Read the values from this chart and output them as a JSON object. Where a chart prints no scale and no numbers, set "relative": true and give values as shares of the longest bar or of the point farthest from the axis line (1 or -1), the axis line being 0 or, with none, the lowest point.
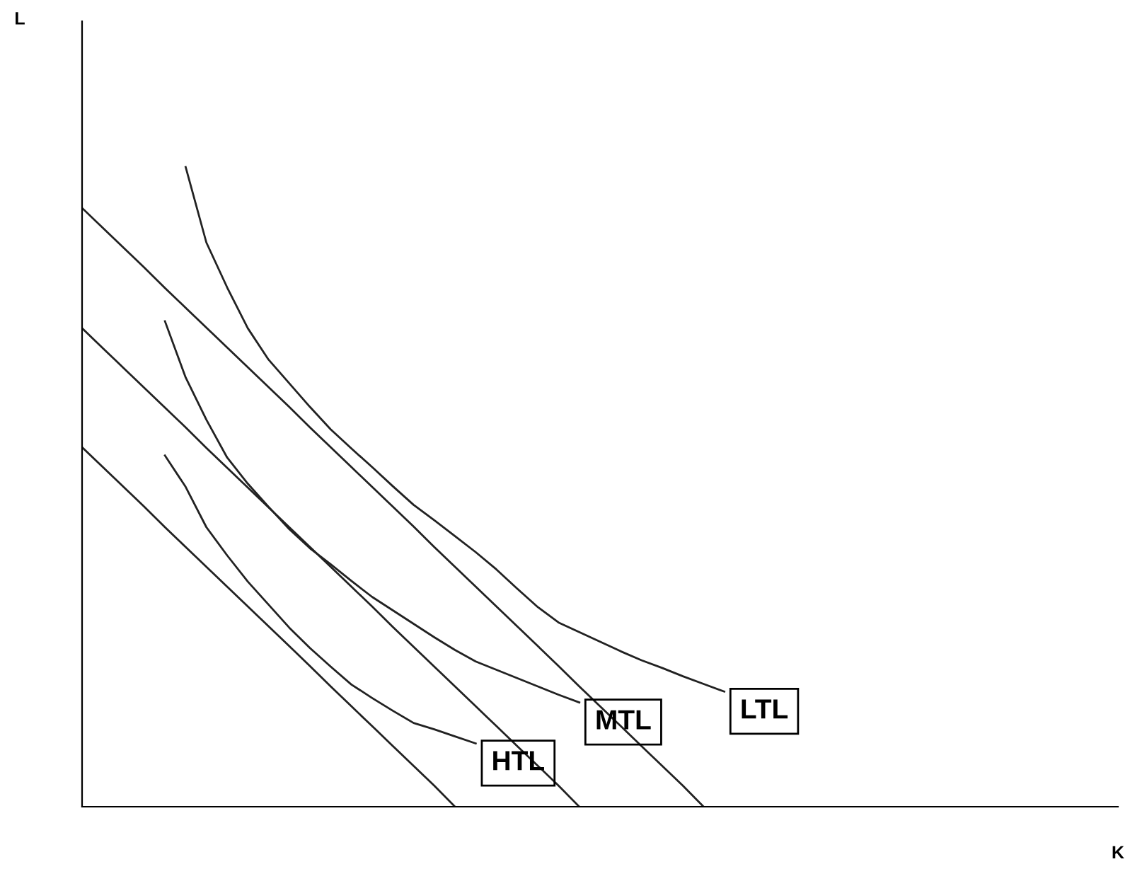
{
  "chart_data": {
    "type": "line",
    "relative": true,
    "xlabel": "K",
    "annotations": [
      "L"
    ],
    "legend": false,
    "marker": "none",
    "line_style": "solid",
    "categories": [
      null,
      null,
      null,
      null,
      null,
      null,
      null,
      null,
      null,
      null,
      null,
      null,
      null,
      null,
      null,
      null,
      null,
      null,
      null,
      null,
      null,
      null,
      null,
      null,
      null,
      null,
      null,
      null,
      null,
      null,
      null,
      null,
      null,
      null,
      null,
      null,
      null,
      null,
      null,
      null,
      null,
      null,
      null,
      null,
      null,
      null,
      null,
      null,
      null,
      null,
      null
    ],
    "series": [
      {
        "color": "#222222",
        "values": [
          0.936,
          0.905,
          0.874,
          0.843,
          0.811,
          0.78,
          0.749,
          0.718,
          0.687,
          0.656,
          0.625,
          0.593,
          0.562,
          0.531,
          0.5,
          0.469,
          0.438,
          0.406,
          0.375,
          0.344,
          0.313,
          0.282,
          0.251,
          0.22,
          0.188,
          0.157,
          0.126,
          0.095,
          0.064,
          0.033,
          0,
          null,
          null,
          null,
          null,
          null,
          null,
          null,
          null,
          null,
          null,
          null,
          null,
          null,
          null,
          null,
          null,
          null,
          null,
          null,
          null
        ]
      },
      {
        "color": "#222222",
        "values": [
          0.748,
          0.717,
          0.686,
          0.655,
          0.624,
          0.593,
          0.561,
          0.53,
          0.499,
          0.468,
          0.437,
          0.406,
          0.375,
          0.344,
          0.313,
          0.281,
          0.25,
          0.219,
          0.188,
          0.157,
          0.126,
          0.095,
          0.064,
          0.033,
          0,
          null,
          null,
          null,
          null,
          null,
          null,
          null,
          null,
          null,
          null,
          null,
          null,
          null,
          null,
          null,
          null,
          null,
          null,
          null,
          null,
          null,
          null,
          null,
          null,
          null,
          null
        ]
      },
      {
        "color": "#222222",
        "values": [
          0.562,
          0.531,
          0.5,
          0.469,
          0.437,
          0.406,
          0.375,
          0.344,
          0.313,
          0.282,
          0.251,
          0.22,
          0.188,
          0.157,
          0.126,
          0.095,
          0.064,
          0.033,
          0,
          null,
          null,
          null,
          null,
          null,
          null,
          null,
          null,
          null,
          null,
          null,
          null,
          null,
          null,
          null,
          null,
          null,
          null,
          null,
          null,
          null,
          null,
          null,
          null,
          null,
          null,
          null,
          null,
          null,
          null,
          null,
          null
        ]
      },
      {
        "name": "LTL",
        "color": "#222222",
        "values": [
          null,
          null,
          null,
          null,
          null,
          1.0,
          0.882,
          0.812,
          0.748,
          0.699,
          0.662,
          0.625,
          0.59,
          0.56,
          0.531,
          0.501,
          0.472,
          0.448,
          0.423,
          0.398,
          0.371,
          0.341,
          0.312,
          0.288,
          0.273,
          0.258,
          0.243,
          0.229,
          0.217,
          0.204,
          0.192,
          0.18,
          null,
          null,
          null,
          null,
          null,
          null,
          null,
          null,
          null,
          null,
          null,
          null,
          null,
          null,
          null,
          null,
          null,
          null,
          null
        ]
      },
      {
        "name": "MTL",
        "color": "#222222",
        "values": [
          null,
          null,
          null,
          null,
          0.759,
          0.671,
          0.605,
          0.546,
          0.505,
          0.469,
          0.434,
          0.404,
          0.379,
          0.353,
          0.328,
          0.307,
          0.286,
          0.265,
          0.245,
          0.227,
          0.214,
          0.201,
          0.188,
          0.175,
          0.163,
          null,
          null,
          null,
          null,
          null,
          null,
          null,
          null,
          null,
          null,
          null,
          null,
          null,
          null,
          null,
          null,
          null,
          null,
          null,
          null,
          null,
          null,
          null,
          null,
          null,
          null
        ]
      },
      {
        "name": "HTL",
        "color": "#222222",
        "values": [
          null,
          null,
          null,
          null,
          0.549,
          0.5,
          0.437,
          0.393,
          0.352,
          0.316,
          0.28,
          0.248,
          0.219,
          0.191,
          0.17,
          0.15,
          0.131,
          0.121,
          0.11,
          0.099,
          null,
          null,
          null,
          null,
          null,
          null,
          null,
          null,
          null,
          null,
          null,
          null,
          null,
          null,
          null,
          null,
          null,
          null,
          null,
          null,
          null,
          null,
          null,
          null,
          null,
          null,
          null,
          null,
          null,
          null,
          null
        ]
      }
    ]
  }
}
